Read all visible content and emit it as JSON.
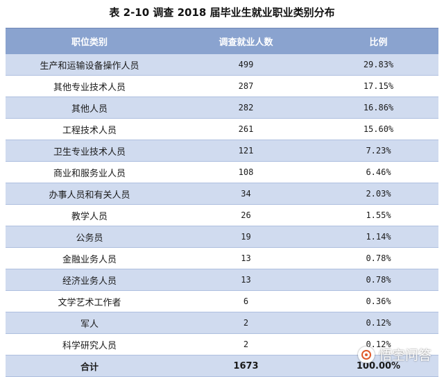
{
  "title": "表 2-10  调查  2018 届毕业生就业职业类别分布",
  "table": {
    "headers": [
      "职位类别",
      "调查就业人数",
      "比例"
    ],
    "rows": [
      {
        "category": "生产和运输设备操作人员",
        "count": "499",
        "ratio": "29.83%"
      },
      {
        "category": "其他专业技术人员",
        "count": "287",
        "ratio": "17.15%"
      },
      {
        "category": "其他人员",
        "count": "282",
        "ratio": "16.86%"
      },
      {
        "category": "工程技术人员",
        "count": "261",
        "ratio": "15.60%"
      },
      {
        "category": "卫生专业技术人员",
        "count": "121",
        "ratio": "7.23%"
      },
      {
        "category": "商业和服务业人员",
        "count": "108",
        "ratio": "6.46%"
      },
      {
        "category": "办事人员和有关人员",
        "count": "34",
        "ratio": "2.03%"
      },
      {
        "category": "教学人员",
        "count": "26",
        "ratio": "1.55%"
      },
      {
        "category": "公务员",
        "count": "19",
        "ratio": "1.14%"
      },
      {
        "category": "金融业务人员",
        "count": "13",
        "ratio": "0.78%"
      },
      {
        "category": "经济业务人员",
        "count": "13",
        "ratio": "0.78%"
      },
      {
        "category": "文学艺术工作者",
        "count": "6",
        "ratio": "0.36%"
      },
      {
        "category": "军人",
        "count": "2",
        "ratio": "0.12%"
      },
      {
        "category": "科学研究人员",
        "count": "2",
        "ratio": "0.12%"
      }
    ],
    "total": {
      "label": "合计",
      "count": "1673",
      "ratio": "100.00%"
    }
  },
  "watermark": {
    "text": "悟空问答",
    "icon": "wukong-logo-icon"
  }
}
